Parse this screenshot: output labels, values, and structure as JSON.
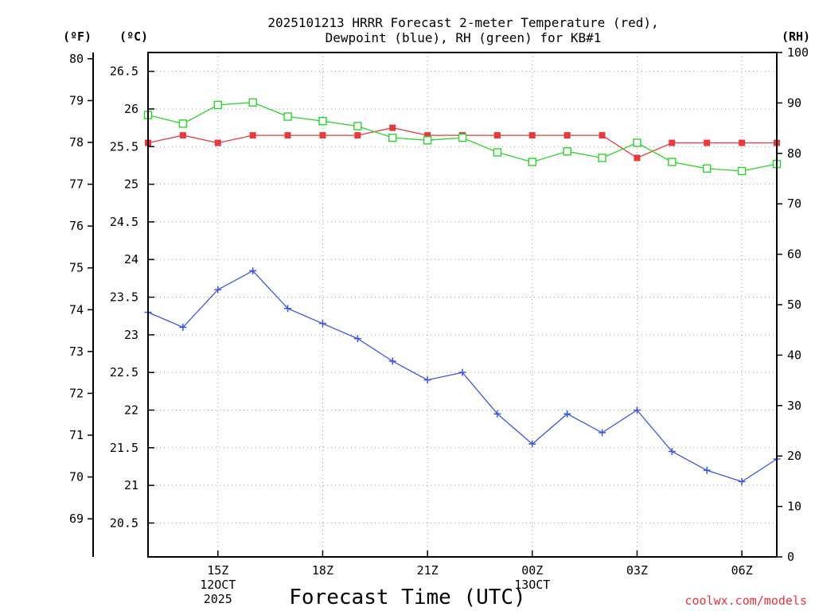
{
  "chart_data": {
    "type": "line",
    "title_line1": "2025101213 HRRR Forecast 2-meter Temperature (red),",
    "title_line2": "Dewpoint (blue), RH (green) for KB#1",
    "xlabel": "Forecast Time (UTC)",
    "credit": "coolwx.com/models",
    "units": {
      "fahrenheit": "(ºF)",
      "celsius": "(ºC)",
      "rh": "(RH)"
    },
    "x_hours": [
      13,
      14,
      15,
      16,
      17,
      18,
      19,
      20,
      21,
      22,
      23,
      24,
      25,
      26,
      27,
      28,
      29,
      30,
      31
    ],
    "xlim": [
      13,
      31
    ],
    "x_ticks": [
      {
        "hour": 15,
        "lines": [
          "15Z",
          "12OCT",
          "2025"
        ]
      },
      {
        "hour": 18,
        "lines": [
          "18Z"
        ]
      },
      {
        "hour": 21,
        "lines": [
          "21Z"
        ]
      },
      {
        "hour": 24,
        "lines": [
          "00Z",
          "13OCT"
        ]
      },
      {
        "hour": 27,
        "lines": [
          "03Z"
        ]
      },
      {
        "hour": 30,
        "lines": [
          "06Z"
        ]
      }
    ],
    "celsius_axis": {
      "ylim": [
        20.05,
        26.75
      ],
      "ticks": [
        "20.5",
        "21",
        "21.5",
        "22",
        "22.5",
        "23",
        "23.5",
        "24",
        "24.5",
        "25",
        "25.5",
        "26",
        "26.5"
      ]
    },
    "fahrenheit_axis": {
      "ticks": [
        "69",
        "70",
        "71",
        "72",
        "73",
        "74",
        "75",
        "76",
        "77",
        "78",
        "79",
        "80"
      ]
    },
    "rh_axis": {
      "ylim": [
        0,
        100
      ],
      "ticks": [
        "0",
        "10",
        "20",
        "30",
        "40",
        "50",
        "60",
        "70",
        "80",
        "90",
        "100"
      ]
    },
    "series": [
      {
        "name": "Temperature (°C)",
        "color": "#e83a3a",
        "marker": "filled-square",
        "axis": "celsius",
        "values": [
          25.55,
          25.65,
          25.55,
          25.65,
          25.65,
          25.65,
          25.65,
          25.75,
          25.65,
          25.65,
          25.65,
          25.65,
          25.65,
          25.65,
          25.35,
          25.55,
          25.55,
          25.55,
          25.55
        ]
      },
      {
        "name": "Dewpoint (°C)",
        "color": "#3a56e8",
        "marker": "plus",
        "axis": "celsius",
        "values": [
          23.3,
          23.1,
          23.6,
          23.85,
          23.35,
          23.15,
          22.95,
          22.65,
          22.4,
          22.5,
          21.95,
          21.55,
          21.95,
          21.7,
          22.0,
          21.45,
          21.2,
          21.05,
          21.35
        ]
      },
      {
        "name": "RH (%)",
        "color": "#2bd42b",
        "marker": "open-square",
        "axis": "rh",
        "values": [
          87.6,
          85.9,
          89.6,
          90.1,
          87.3,
          86.4,
          85.4,
          83.1,
          82.6,
          83.1,
          80.2,
          78.3,
          80.4,
          79.1,
          82.1,
          78.3,
          77.0,
          76.5,
          77.9
        ]
      }
    ]
  }
}
